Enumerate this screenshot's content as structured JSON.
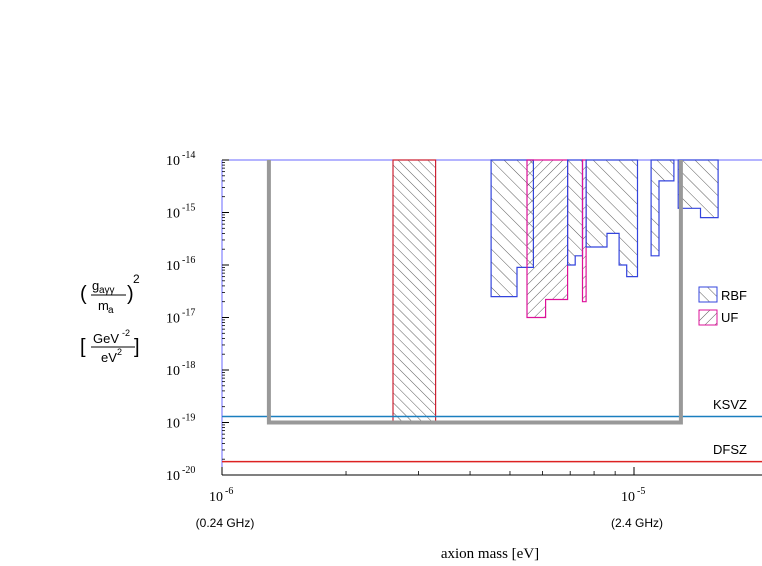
{
  "chart_data": {
    "type": "area",
    "xlabel": "axion mass [eV]",
    "xscale": "log",
    "yscale": "log",
    "xlim": [
      1e-06,
      1.9e-05
    ],
    "ylim": [
      1e-20,
      1e-14
    ],
    "x_ticks": [
      {
        "value": 1e-06,
        "base": "10",
        "exp": "-6",
        "sub": "(0.24 GHz)"
      },
      {
        "value": 1e-05,
        "base": "10",
        "exp": "-5",
        "sub": "(2.4 GHz)"
      }
    ],
    "y_ticks": [
      {
        "value": 1e-14,
        "base": "10",
        "exp": "-14"
      },
      {
        "value": 1e-15,
        "base": "10",
        "exp": "-15"
      },
      {
        "value": 1e-16,
        "base": "10",
        "exp": "-16"
      },
      {
        "value": 1e-17,
        "base": "10",
        "exp": "-17"
      },
      {
        "value": 1e-18,
        "base": "10",
        "exp": "-18"
      },
      {
        "value": 1e-19,
        "base": "10",
        "exp": "-19"
      },
      {
        "value": 1e-20,
        "base": "10",
        "exp": "-20"
      }
    ],
    "ylabel": {
      "numerator": "g",
      "numerator_sub": "aγγ",
      "denominator": "m",
      "denominator_sub": "a",
      "power": "2",
      "units_num": "GeV",
      "units_num_exp": "-2",
      "units_den": "eV",
      "units_den_exp": "2",
      "open_bracket": "[",
      "close_bracket": "]",
      "open_paren": "(",
      "close_paren": ")"
    },
    "legend": {
      "position": "right",
      "entries": [
        {
          "name": "RBF",
          "color": "#3344dd"
        },
        {
          "name": "UF",
          "color": "#dd1199"
        }
      ]
    },
    "model_lines": [
      {
        "name": "KSVZ",
        "value": 1.3e-19,
        "color": "#1a7fbf"
      },
      {
        "name": "DFSZ",
        "value": 1.8e-20,
        "color": "#dd2222"
      }
    ],
    "exclusion_regions": [
      {
        "experiment": "RBF",
        "color": "#3344dd",
        "points": [
          [
            4.5e-06,
            1e-14
          ],
          [
            4.5e-06,
            2.5e-17
          ],
          [
            5.2e-06,
            2.5e-17
          ],
          [
            5.2e-06,
            9e-17
          ],
          [
            5.7e-06,
            9e-17
          ],
          [
            5.7e-06,
            1e-14
          ]
        ]
      },
      {
        "experiment": "UF",
        "color": "#dd1199",
        "points": [
          [
            5.5e-06,
            1e-14
          ],
          [
            5.5e-06,
            1e-17
          ],
          [
            6.1e-06,
            1e-17
          ],
          [
            6.1e-06,
            2.2e-17
          ],
          [
            6.9e-06,
            2.2e-17
          ],
          [
            6.9e-06,
            1e-14
          ]
        ]
      },
      {
        "experiment": "RBF",
        "color": "#3344dd",
        "points": [
          [
            6.9e-06,
            1e-14
          ],
          [
            6.9e-06,
            1e-16
          ],
          [
            7.2e-06,
            1e-16
          ],
          [
            7.2e-06,
            1.5e-16
          ],
          [
            7.5e-06,
            1.5e-16
          ],
          [
            7.5e-06,
            1e-14
          ]
        ]
      },
      {
        "experiment": "UF",
        "color": "#dd1199",
        "points": [
          [
            7.5e-06,
            1e-14
          ],
          [
            7.5e-06,
            2e-17
          ],
          [
            7.65e-06,
            2e-17
          ],
          [
            7.65e-06,
            1e-14
          ]
        ]
      },
      {
        "experiment": "RBF",
        "color": "#3344dd",
        "points": [
          [
            7.65e-06,
            1e-14
          ],
          [
            7.65e-06,
            2.2e-16
          ],
          [
            8.6e-06,
            2.2e-16
          ],
          [
            8.6e-06,
            4e-16
          ],
          [
            9.2e-06,
            4e-16
          ],
          [
            9.2e-06,
            1e-16
          ],
          [
            9.6e-06,
            1e-16
          ],
          [
            9.6e-06,
            6e-17
          ],
          [
            1.02e-05,
            6e-17
          ],
          [
            1.02e-05,
            1e-14
          ]
        ]
      },
      {
        "experiment": "RBF",
        "color": "#3344dd",
        "points": [
          [
            1.1e-05,
            1e-14
          ],
          [
            1.1e-05,
            1.5e-16
          ],
          [
            1.15e-05,
            1.5e-16
          ],
          [
            1.15e-05,
            4e-15
          ],
          [
            1.25e-05,
            4e-15
          ],
          [
            1.25e-05,
            1e-14
          ]
        ]
      },
      {
        "experiment": "RBF",
        "color": "#3344dd",
        "points": [
          [
            1.28e-05,
            1e-14
          ],
          [
            1.28e-05,
            1.2e-15
          ],
          [
            1.45e-05,
            1.2e-15
          ],
          [
            1.45e-05,
            8e-16
          ],
          [
            1.6e-05,
            8e-16
          ],
          [
            1.6e-05,
            1e-14
          ]
        ]
      },
      {
        "experiment": "",
        "color": "#cc2233",
        "points": [
          [
            2.6e-06,
            1e-14
          ],
          [
            2.6e-06,
            1e-19
          ],
          [
            3.3e-06,
            1e-19
          ],
          [
            3.3e-06,
            1e-14
          ]
        ]
      }
    ],
    "projection_outline": {
      "color": "#999999",
      "points": [
        [
          1.3e-06,
          1e-14
        ],
        [
          1.3e-06,
          1e-19
        ],
        [
          1.3e-05,
          1e-19
        ],
        [
          1.3e-05,
          1e-14
        ]
      ]
    }
  }
}
